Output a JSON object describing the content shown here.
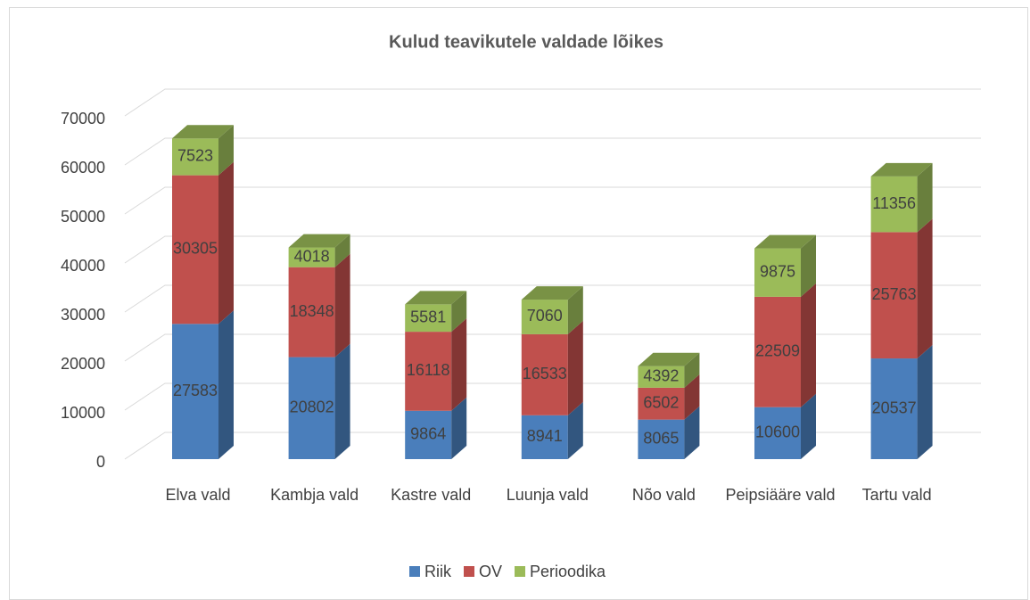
{
  "chart_data": {
    "type": "bar3d_stacked",
    "title": "Kulud teavikutele valdade lõikes",
    "categories": [
      "Elva vald",
      "Kambja vald",
      "Kastre vald",
      "Luunja vald",
      "Nõo vald",
      "Peipsiääre vald",
      "Tartu vald"
    ],
    "series": [
      {
        "name": "Riik",
        "color": "#4a7ebb",
        "values": [
          27583,
          20802,
          9864,
          8941,
          8065,
          10600,
          20537
        ]
      },
      {
        "name": "OV",
        "color": "#c0504d",
        "values": [
          30305,
          18348,
          16118,
          16533,
          6502,
          22509,
          25763
        ]
      },
      {
        "name": "Perioodika",
        "color": "#9bbb59",
        "values": [
          7523,
          4018,
          5581,
          7060,
          4392,
          9875,
          11356
        ]
      }
    ],
    "ylim": [
      0,
      70000
    ],
    "yticks": [
      0,
      10000,
      20000,
      30000,
      40000,
      50000,
      60000,
      70000
    ],
    "grid": true,
    "legend": "bottom"
  }
}
